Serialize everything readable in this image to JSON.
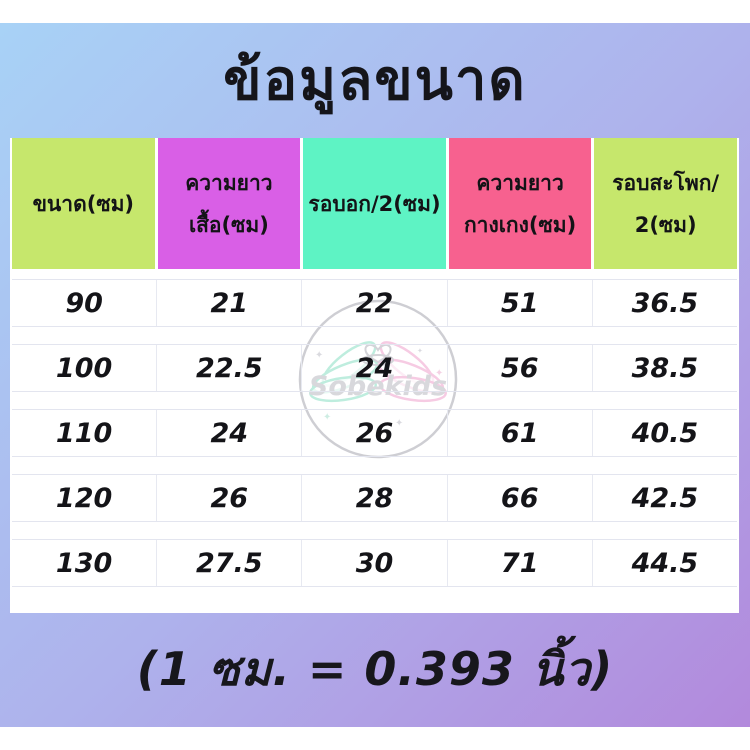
{
  "title": "ข้อมูลขนาด",
  "footnote": "(1 ซม. = 0.393 นิ้ว)",
  "watermark": {
    "brand": "Sobekids"
  },
  "colors": {
    "bg_gradient_start": "#a8d2f6",
    "bg_gradient_mid": "#aeb2ec",
    "bg_gradient_end": "#b289dc",
    "header_green": "#c6e76c",
    "header_orchid": "#d95fe6",
    "header_mint": "#5ef3c4",
    "header_pink": "#f7618f",
    "wing_mint": "#b7ecdb",
    "wing_pink": "#f6c6e0"
  },
  "table": {
    "columns": [
      {
        "id": "size",
        "lines": [
          "ขนาด(ซม)"
        ],
        "color": "#c6e76c"
      },
      {
        "id": "shirt-length",
        "lines": [
          "ความยาว",
          "เสื้อ(ซม)"
        ],
        "color": "#d95fe6"
      },
      {
        "id": "chest-half",
        "lines": [
          "รอบอก/2(ซม)"
        ],
        "color": "#5ef3c4"
      },
      {
        "id": "pants-length",
        "lines": [
          "ความยาว",
          "กางเกง(ซม)"
        ],
        "color": "#f7618f"
      },
      {
        "id": "hip-half",
        "lines": [
          "รอบสะโพก/",
          "2(ซม)"
        ],
        "color": "#c6e76c"
      }
    ],
    "rows": [
      [
        "90",
        "21",
        "22",
        "51",
        "36.5"
      ],
      [
        "100",
        "22.5",
        "24",
        "56",
        "38.5"
      ],
      [
        "110",
        "24",
        "26",
        "61",
        "40.5"
      ],
      [
        "120",
        "26",
        "28",
        "66",
        "42.5"
      ],
      [
        "130",
        "27.5",
        "30",
        "71",
        "44.5"
      ]
    ]
  }
}
